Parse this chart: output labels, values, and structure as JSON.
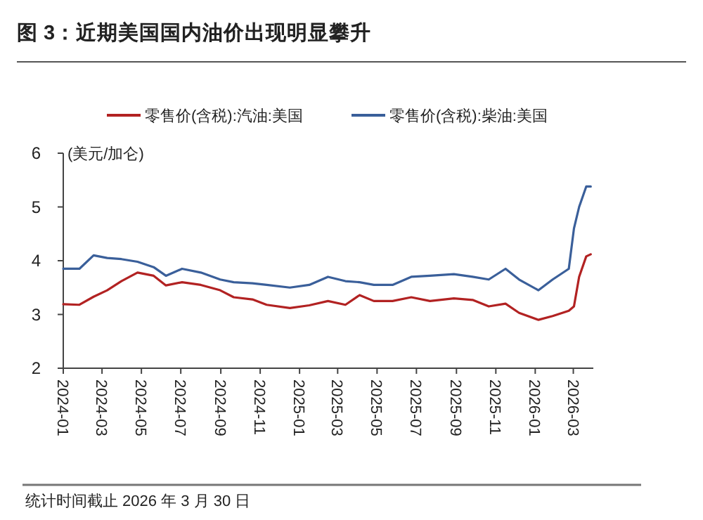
{
  "chart_data": {
    "type": "line",
    "title": "图 3：近期美国国内油价出现明显攀升",
    "ylabel": "(美元/加仑)",
    "annotations": [
      "统计时间截止 2026 年 3 月 30 日"
    ],
    "x": [
      "2024-01-01",
      "2024-01-26",
      "2024-02-17",
      "2024-03-09",
      "2024-03-31",
      "2024-04-25",
      "2024-05-20",
      "2024-06-08",
      "2024-07-03",
      "2024-08-01",
      "2024-08-31",
      "2024-09-21",
      "2024-10-20",
      "2024-11-11",
      "2024-12-17",
      "2025-01-16",
      "2025-02-14",
      "2025-03-13",
      "2025-04-04",
      "2025-04-26",
      "2025-05-25",
      "2025-06-23",
      "2025-07-22",
      "2025-08-28",
      "2025-09-26",
      "2025-10-21",
      "2025-11-16",
      "2025-12-07",
      "2026-01-06",
      "2026-01-28",
      "2026-02-22",
      "2026-03-02",
      "2026-03-10",
      "2026-03-21",
      "2026-03-28"
    ],
    "series": [
      {
        "name": "零售价(含税):汽油:美国",
        "color": "#b22222",
        "values": [
          3.19,
          3.18,
          3.33,
          3.45,
          3.62,
          3.78,
          3.72,
          3.54,
          3.6,
          3.55,
          3.45,
          3.32,
          3.28,
          3.18,
          3.12,
          3.17,
          3.25,
          3.18,
          3.36,
          3.25,
          3.25,
          3.32,
          3.25,
          3.3,
          3.27,
          3.15,
          3.2,
          3.03,
          2.9,
          2.97,
          3.07,
          3.15,
          3.7,
          4.08,
          4.12
        ]
      },
      {
        "name": "零售价(含税):柴油:美国",
        "color": "#3a5f9a",
        "values": [
          3.85,
          3.85,
          4.1,
          4.05,
          4.03,
          3.98,
          3.88,
          3.72,
          3.85,
          3.78,
          3.65,
          3.6,
          3.58,
          3.55,
          3.5,
          3.55,
          3.7,
          3.62,
          3.6,
          3.55,
          3.55,
          3.7,
          3.72,
          3.75,
          3.7,
          3.65,
          3.85,
          3.65,
          3.45,
          3.65,
          3.85,
          4.6,
          5.0,
          5.38,
          5.38
        ]
      }
    ],
    "xlim": [
      "2024-01-01",
      "2026-04-01"
    ],
    "xticks": [
      {
        "value": "2024-01",
        "label": "2024-01"
      },
      {
        "value": "2024-03",
        "label": "2024-03"
      },
      {
        "value": "2024-05",
        "label": "2024-05"
      },
      {
        "value": "2024-07",
        "label": "2024-07"
      },
      {
        "value": "2024-09",
        "label": "2024-09"
      },
      {
        "value": "2024-11",
        "label": "2024-11"
      },
      {
        "value": "2025-01",
        "label": "2025-01"
      },
      {
        "value": "2025-03",
        "label": "2025-03"
      },
      {
        "value": "2025-05",
        "label": "2025-05"
      },
      {
        "value": "2025-07",
        "label": "2025-07"
      },
      {
        "value": "2025-09",
        "label": "2025-09"
      },
      {
        "value": "2025-11",
        "label": "2025-11"
      },
      {
        "value": "2026-01",
        "label": "2026-01"
      },
      {
        "value": "2026-03",
        "label": "2026-03"
      }
    ],
    "ylim": [
      2,
      6
    ],
    "yticks": [
      2,
      3,
      4,
      5,
      6
    ],
    "grid": false,
    "legend": "top",
    "marker": "none",
    "line_style": "solid"
  }
}
